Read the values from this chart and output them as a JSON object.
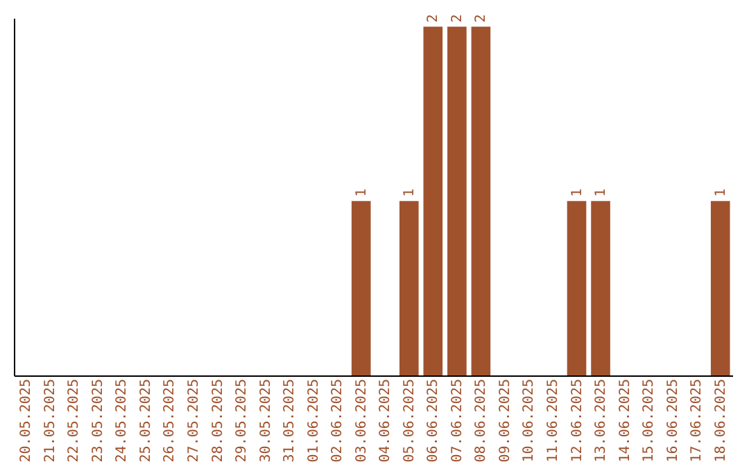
{
  "chart_data": {
    "type": "bar",
    "categories": [
      "20.05.2025",
      "21.05.2025",
      "22.05.2025",
      "23.05.2025",
      "24.05.2025",
      "25.05.2025",
      "26.05.2025",
      "27.05.2025",
      "28.05.2025",
      "29.05.2025",
      "30.05.2025",
      "31.05.2025",
      "01.06.2025",
      "02.06.2025",
      "03.06.2025",
      "04.06.2025",
      "05.06.2025",
      "06.06.2025",
      "07.06.2025",
      "08.06.2025",
      "09.06.2025",
      "10.06.2025",
      "11.06.2025",
      "12.06.2025",
      "13.06.2025",
      "14.06.2025",
      "15.06.2025",
      "16.06.2025",
      "17.06.2025",
      "18.06.2025"
    ],
    "values": [
      null,
      null,
      null,
      null,
      null,
      null,
      null,
      null,
      null,
      null,
      null,
      null,
      null,
      null,
      1,
      null,
      1,
      2,
      2,
      2,
      null,
      null,
      null,
      1,
      1,
      null,
      null,
      null,
      null,
      1
    ],
    "data_labels": true,
    "color": "#a0522d",
    "ylim": [
      0,
      2.05
    ],
    "tick_labels": "x",
    "grid": false
  }
}
